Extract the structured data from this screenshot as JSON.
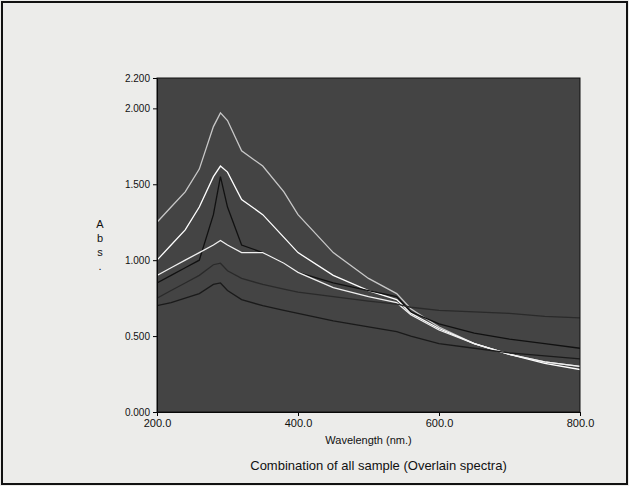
{
  "chart_data": {
    "type": "line",
    "title": "Combination of all sample (Overlain spectra)",
    "x_label": "Wavelength (nm.)",
    "y_label": "Abs.",
    "xlim": [
      200,
      800
    ],
    "xticks": [
      {
        "value": 200,
        "label": "200.0"
      },
      {
        "value": 400,
        "label": "400.0"
      },
      {
        "value": 600,
        "label": "600.0"
      },
      {
        "value": 800,
        "label": "800.0"
      }
    ],
    "ylim": [
      0,
      2.2
    ],
    "yticks": [
      {
        "value": 0,
        "label": "0.000"
      },
      {
        "value": 0.5,
        "label": "0.500"
      },
      {
        "value": 1,
        "label": "1.000"
      },
      {
        "value": 1.5,
        "label": "1.500"
      },
      {
        "value": 2,
        "label": "2.000"
      },
      {
        "value": 2.2,
        "label": "2.200"
      }
    ],
    "grid": false,
    "x": [
      200,
      220,
      240,
      260,
      280,
      290,
      300,
      320,
      350,
      380,
      400,
      450,
      500,
      540,
      560,
      600,
      650,
      700,
      750,
      800
    ],
    "series": [
      {
        "color": "#c8c8c8",
        "values": [
          1.25,
          1.35,
          1.45,
          1.6,
          1.88,
          1.97,
          1.92,
          1.72,
          1.62,
          1.45,
          1.3,
          1.05,
          0.88,
          0.78,
          0.68,
          0.56,
          0.45,
          0.38,
          0.33,
          0.3
        ]
      },
      {
        "color": "#ffffff",
        "values": [
          1.0,
          1.1,
          1.2,
          1.35,
          1.55,
          1.62,
          1.58,
          1.4,
          1.3,
          1.15,
          1.05,
          0.9,
          0.8,
          0.74,
          0.65,
          0.55,
          0.45,
          0.38,
          0.32,
          0.28
        ]
      },
      {
        "color": "#111111",
        "values": [
          0.85,
          0.9,
          0.95,
          1.0,
          1.3,
          1.55,
          1.35,
          1.1,
          1.05,
          0.98,
          0.92,
          0.85,
          0.8,
          0.76,
          0.66,
          0.58,
          0.52,
          0.48,
          0.45,
          0.42
        ]
      },
      {
        "color": "#f0f0f0",
        "values": [
          0.9,
          0.95,
          1.0,
          1.05,
          1.1,
          1.13,
          1.1,
          1.05,
          1.05,
          0.98,
          0.92,
          0.82,
          0.76,
          0.72,
          0.64,
          0.54,
          0.45,
          0.38,
          0.33,
          0.3
        ]
      },
      {
        "color": "#2a2a2a",
        "values": [
          0.75,
          0.8,
          0.85,
          0.9,
          0.97,
          0.98,
          0.93,
          0.88,
          0.84,
          0.81,
          0.79,
          0.76,
          0.73,
          0.71,
          0.69,
          0.67,
          0.66,
          0.65,
          0.63,
          0.62
        ]
      },
      {
        "color": "#1a1a1a",
        "values": [
          0.7,
          0.72,
          0.75,
          0.78,
          0.84,
          0.85,
          0.8,
          0.74,
          0.7,
          0.67,
          0.65,
          0.6,
          0.56,
          0.53,
          0.5,
          0.45,
          0.42,
          0.39,
          0.37,
          0.35
        ]
      }
    ]
  }
}
